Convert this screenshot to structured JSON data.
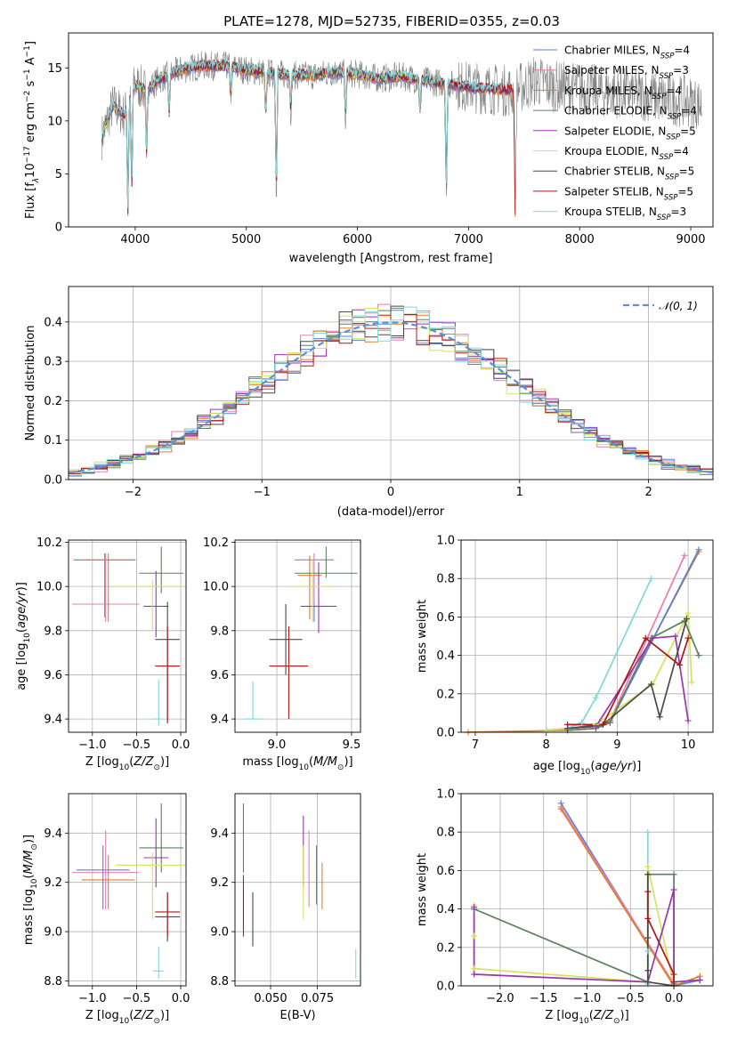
{
  "figure": {
    "title": "PLATE=1278, MJD=52735, FIBERID=0355, z=0.03"
  },
  "models": [
    {
      "name": "Chabrier MILES, N",
      "sub": "SSP",
      "eq": "=4",
      "color": "#5b7fd9"
    },
    {
      "name": "Salpeter MILES, N",
      "sub": "SSP",
      "eq": "=3",
      "color": "#e87bb2"
    },
    {
      "name": "Kroupa MILES, N",
      "sub": "SSP",
      "eq": "=4",
      "color": "#e0802a"
    },
    {
      "name": "Chabrier ELODIE, N",
      "sub": "SSP",
      "eq": "=4",
      "color": "#5a8060"
    },
    {
      "name": "Salpeter ELODIE, N",
      "sub": "SSP",
      "eq": "=5",
      "color": "#9a35b0"
    },
    {
      "name": "Kroupa ELODIE, N",
      "sub": "SSP",
      "eq": "=4",
      "color": "#d6e35a"
    },
    {
      "name": "Chabrier STELIB, N",
      "sub": "SSP",
      "eq": "=5",
      "color": "#4a4a4a"
    },
    {
      "name": "Salpeter STELIB, N",
      "sub": "SSP",
      "eq": "=5",
      "color": "#b01818"
    },
    {
      "name": "Kroupa STELIB, N",
      "sub": "SSP",
      "eq": "=3",
      "color": "#7ed8dc"
    }
  ],
  "chart_data": [
    {
      "type": "line",
      "id": "spectrum",
      "title": "PLATE=1278, MJD=52735, FIBERID=0355, z=0.03",
      "xlabel": "wavelength [Angstrom, rest frame]",
      "ylabel_main": "Flux [f",
      "ylabel_rest": "10",
      "ylabel_exp": "−17",
      "ylabel_units": " erg cm",
      "ylabel_exp2": "−2",
      "ylabel_units2": " s",
      "ylabel_exp3": "−1",
      "ylabel_units3": " A",
      "ylabel_exp4": "−1",
      "ylabel_end": "]",
      "xlim": [
        3400,
        9200
      ],
      "ylim": [
        0,
        18.3
      ],
      "xticks": [
        4000,
        5000,
        6000,
        7000,
        8000,
        9000
      ],
      "yticks": [
        0,
        5,
        10,
        15
      ],
      "continuum": {
        "x": [
          3700,
          3800,
          3900,
          4000,
          4100,
          4200,
          4400,
          4600,
          4800,
          5000,
          5200,
          5400,
          5600,
          5800,
          6000,
          6200,
          6400,
          6600,
          6800,
          7000,
          7200,
          7400,
          7600,
          7800,
          8000,
          8200,
          8400,
          8600,
          8800,
          9000,
          9100
        ],
        "y": [
          8.5,
          11.5,
          10.5,
          13.5,
          12.8,
          13.8,
          14.8,
          15.2,
          15.2,
          14.8,
          14.5,
          14.3,
          14.3,
          14.6,
          14.4,
          14.0,
          14.2,
          13.8,
          13.5,
          13.2,
          13.0,
          12.8,
          13.8,
          13.2,
          13.1,
          12.8,
          12.6,
          12.4,
          12.0,
          11.8,
          11.5
        ]
      },
      "absorption_features": [
        {
          "x": 3934,
          "depth": 10.5
        },
        {
          "x": 3969,
          "depth": 9.5
        },
        {
          "x": 4102,
          "depth": 6.0
        },
        {
          "x": 4305,
          "depth": 4.0
        },
        {
          "x": 4861,
          "depth": 3.0
        },
        {
          "x": 5175,
          "depth": 4.5
        },
        {
          "x": 5270,
          "depth": 12.0
        },
        {
          "x": 5400,
          "depth": 3.5
        },
        {
          "x": 5893,
          "depth": 4.5
        },
        {
          "x": 6563,
          "depth": 3.5
        },
        {
          "x": 6800,
          "depth": 11.5
        },
        {
          "x": 7420,
          "depth": 12.5
        }
      ],
      "legend": "upper right"
    },
    {
      "type": "line",
      "id": "residuals",
      "xlabel": "(data-model)/error",
      "ylabel": "Normed distribution",
      "xlim": [
        -2.5,
        2.5
      ],
      "ylim": [
        0,
        0.49
      ],
      "xticks": [
        -2,
        -1,
        0,
        1,
        2
      ],
      "yticks": [
        0.0,
        0.1,
        0.2,
        0.3,
        0.4
      ],
      "grid": true,
      "gaussian_label": "𝒩(0, 1)",
      "gaussian_color": "#5b8fd9",
      "bin_width": 0.1,
      "histogram_noise_seed": [
        0.02,
        -0.015,
        0.01,
        -0.02,
        0.018,
        -0.008,
        0.012,
        -0.01,
        0.015
      ]
    },
    {
      "type": "scatter",
      "id": "age-vs-Z",
      "xlabel": "Z [log",
      "xlabel_sub": "10",
      "xlabel_rest": "(Z/Z",
      "xlabel_sub2": "⊙",
      "xlabel_end": ")]",
      "ylabel": "age  [log",
      "ylabel_sub": "10",
      "ylabel_rest": "(age/yr)]",
      "xlim": [
        -1.27,
        0.06
      ],
      "ylim": [
        9.34,
        10.21
      ],
      "xticks": [
        -1.0,
        -0.5,
        0.0
      ],
      "yticks": [
        9.4,
        9.6,
        9.8,
        10.0,
        10.2
      ],
      "points": [
        {
          "x": -0.86,
          "y": 10.12,
          "xe": 0.35,
          "yel": 0.26,
          "yeh": 0.03,
          "c": 0
        },
        {
          "x": -0.85,
          "y": 9.92,
          "xe": 0.38,
          "yel": 0.08,
          "yeh": 0.23,
          "c": 1
        },
        {
          "x": -0.82,
          "y": 10.12,
          "xe": 0.3,
          "yel": 0.28,
          "yeh": 0.03,
          "c": 2
        },
        {
          "x": -0.22,
          "y": 10.06,
          "xe": 0.25,
          "yel": 0.09,
          "yeh": 0.12,
          "c": 3
        },
        {
          "x": -0.28,
          "y": 9.91,
          "xe": 0.14,
          "yel": 0.14,
          "yeh": 0.16,
          "c": 4
        },
        {
          "x": -0.32,
          "y": 10.0,
          "xe": 0.42,
          "yel": 0.2,
          "yeh": 0.03,
          "c": 5
        },
        {
          "x": -0.15,
          "y": 9.76,
          "xe": 0.14,
          "yel": 0.38,
          "yeh": 0.17,
          "c": 6
        },
        {
          "x": -0.15,
          "y": 9.64,
          "xe": 0.14,
          "yel": 0.25,
          "yeh": 0.18,
          "c": 7
        },
        {
          "x": -0.25,
          "y": 9.4,
          "xe": 0.06,
          "yel": 0.03,
          "yeh": 0.18,
          "c": 8
        }
      ]
    },
    {
      "type": "scatter",
      "id": "age-vs-mass",
      "xlabel": "mass [log",
      "xlabel_sub": "10",
      "xlabel_rest": "(M/M",
      "xlabel_sub2": "⊙",
      "xlabel_end": ")]",
      "xlim": [
        8.72,
        9.56
      ],
      "ylim": [
        9.34,
        10.21
      ],
      "xticks": [
        9.0,
        9.5
      ],
      "yticks": [
        9.4,
        9.6,
        9.8,
        10.0,
        10.2
      ],
      "points": [
        {
          "x": 9.25,
          "y": 10.12,
          "xe": 0.13,
          "yel": 0.28,
          "yeh": 0.03,
          "c": 0
        },
        {
          "x": 9.25,
          "y": 10.12,
          "xe": 0.12,
          "yel": 0.2,
          "yeh": 0.03,
          "c": 1
        },
        {
          "x": 9.22,
          "y": 10.05,
          "xe": 0.08,
          "yel": 0.2,
          "yeh": 0.09,
          "c": 2
        },
        {
          "x": 9.33,
          "y": 10.06,
          "xe": 0.21,
          "yel": 0.02,
          "yeh": 0.12,
          "c": 3
        },
        {
          "x": 9.28,
          "y": 9.91,
          "xe": 0.12,
          "yel": 0.12,
          "yeh": 0.2,
          "c": 4
        },
        {
          "x": 9.24,
          "y": 10.0,
          "xe": 0.12,
          "yel": 0.16,
          "yeh": 0.12,
          "c": 5
        },
        {
          "x": 9.06,
          "y": 9.76,
          "xe": 0.11,
          "yel": 0.16,
          "yeh": 0.16,
          "c": 6
        },
        {
          "x": 9.08,
          "y": 9.64,
          "xe": 0.13,
          "yel": 0.24,
          "yeh": 0.18,
          "c": 7
        },
        {
          "x": 8.84,
          "y": 9.4,
          "xe": 0.06,
          "yel": 0.0,
          "yeh": 0.17,
          "c": 8
        }
      ]
    },
    {
      "type": "line",
      "id": "mass-weight-vs-age",
      "xlabel": "age  [log",
      "xlabel_sub": "10",
      "xlabel_rest": "(age/yr)]",
      "ylabel": "mass weight",
      "xlim": [
        6.8,
        10.35
      ],
      "ylim": [
        0,
        1.0
      ],
      "xticks": [
        7,
        8,
        9,
        10
      ],
      "yticks": [
        0.0,
        0.2,
        0.4,
        0.6,
        0.8,
        1.0
      ],
      "grid": true,
      "series": [
        {
          "c": 8,
          "x": [
            8.0,
            8.3,
            8.5,
            8.7,
            9.48
          ],
          "y": [
            0.01,
            0.02,
            0.05,
            0.18,
            0.8
          ]
        },
        {
          "c": 1,
          "x": [
            8.0,
            8.3,
            8.7,
            8.9,
            9.95
          ],
          "y": [
            0.01,
            0.02,
            0.03,
            0.06,
            0.92
          ]
        },
        {
          "c": 2,
          "x": [
            6.9,
            8.3,
            8.7,
            8.9,
            10.15
          ],
          "y": [
            0.0,
            0.01,
            0.02,
            0.06,
            0.94
          ]
        },
        {
          "c": 0,
          "x": [
            8.0,
            8.3,
            8.7,
            8.9,
            10.15
          ],
          "y": [
            0.01,
            0.02,
            0.03,
            0.05,
            0.95
          ]
        },
        {
          "c": 5,
          "x": [
            8.0,
            8.3,
            8.7,
            9.5,
            10.0,
            10.05
          ],
          "y": [
            0.01,
            0.02,
            0.04,
            0.25,
            0.62,
            0.26
          ]
        },
        {
          "c": 3,
          "x": [
            8.3,
            8.7,
            8.9,
            9.48,
            9.95,
            10.15
          ],
          "y": [
            0.01,
            0.02,
            0.05,
            0.49,
            0.58,
            0.4
          ]
        },
        {
          "c": 4,
          "x": [
            8.3,
            8.7,
            9.5,
            9.82,
            10.0
          ],
          "y": [
            0.02,
            0.03,
            0.49,
            0.5,
            0.06
          ]
        },
        {
          "c": 6,
          "x": [
            8.3,
            8.8,
            9.48,
            9.6,
            9.98
          ],
          "y": [
            0.02,
            0.04,
            0.25,
            0.08,
            0.59
          ]
        },
        {
          "c": 7,
          "x": [
            8.3,
            8.8,
            9.4,
            9.88,
            10.0
          ],
          "y": [
            0.04,
            0.04,
            0.49,
            0.35,
            0.49
          ]
        }
      ]
    },
    {
      "type": "scatter",
      "id": "mass-vs-Z",
      "xlabel": "Z [log",
      "xlabel_sub": "10",
      "xlabel_rest": "(Z/Z",
      "xlabel_sub2": "⊙",
      "xlabel_end": ")]",
      "ylabel": "mass [log",
      "ylabel_sub": "10",
      "ylabel_rest": "(M/M",
      "ylabel_sub2": "⊙",
      "ylabel_end": ")]",
      "xlim": [
        -1.27,
        0.06
      ],
      "ylim": [
        8.78,
        9.56
      ],
      "xticks": [
        -1.0,
        -0.5,
        0.0
      ],
      "yticks": [
        8.8,
        9.0,
        9.2,
        9.4
      ],
      "points": [
        {
          "x": -0.88,
          "y": 9.25,
          "xe": 0.3,
          "yel": 0.16,
          "yeh": 0.1,
          "c": 0
        },
        {
          "x": -0.85,
          "y": 9.24,
          "xe": 0.38,
          "yel": 0.15,
          "yeh": 0.17,
          "c": 1
        },
        {
          "x": -0.82,
          "y": 9.21,
          "xe": 0.3,
          "yel": 0.12,
          "yeh": 0.1,
          "c": 2
        },
        {
          "x": -0.22,
          "y": 9.34,
          "xe": 0.25,
          "yel": 0.1,
          "yeh": 0.18,
          "c": 3
        },
        {
          "x": -0.28,
          "y": 9.3,
          "xe": 0.14,
          "yel": 0.12,
          "yeh": 0.16,
          "c": 4
        },
        {
          "x": -0.32,
          "y": 9.27,
          "xe": 0.42,
          "yel": 0.22,
          "yeh": 0.05,
          "c": 5
        },
        {
          "x": -0.15,
          "y": 9.06,
          "xe": 0.14,
          "yel": 0.1,
          "yeh": 0.1,
          "c": 6
        },
        {
          "x": -0.15,
          "y": 9.08,
          "xe": 0.14,
          "yel": 0.1,
          "yeh": 0.08,
          "c": 7
        },
        {
          "x": -0.25,
          "y": 8.84,
          "xe": 0.06,
          "yel": 0.03,
          "yeh": 0.1,
          "c": 8
        }
      ]
    },
    {
      "type": "scatter",
      "id": "mass-vs-ebv",
      "xlabel": "E(B-V)",
      "xlim": [
        0.031,
        0.098
      ],
      "ylim": [
        8.78,
        9.56
      ],
      "xticks": [
        0.05,
        0.075
      ],
      "xticklabels": [
        "0.050",
        "0.075"
      ],
      "yticks": [
        8.8,
        9.0,
        9.2,
        9.4
      ],
      "points": [
        {
          "x": 0.0745,
          "y": 9.25,
          "yel": 0.14,
          "yeh": 0.1,
          "c": 0
        },
        {
          "x": 0.0705,
          "y": 9.24,
          "yel": 0.14,
          "yeh": 0.17,
          "c": 1
        },
        {
          "x": 0.0775,
          "y": 9.21,
          "yel": 0.12,
          "yeh": 0.07,
          "c": 2
        },
        {
          "x": 0.0355,
          "y": 9.34,
          "yel": 0.1,
          "yeh": 0.18,
          "c": 3
        },
        {
          "x": 0.0675,
          "y": 9.3,
          "yel": 0.12,
          "yeh": 0.17,
          "c": 4
        },
        {
          "x": 0.0675,
          "y": 9.27,
          "yel": 0.22,
          "yeh": 0.08,
          "c": 5
        },
        {
          "x": 0.0405,
          "y": 9.06,
          "yel": 0.12,
          "yeh": 0.1,
          "c": 6
        },
        {
          "x": 0.0355,
          "y": 9.08,
          "yel": 0.1,
          "yeh": 0.15,
          "c": 7
        },
        {
          "x": 0.0955,
          "y": 8.84,
          "yel": 0.03,
          "yeh": 0.09,
          "c": 8
        }
      ]
    },
    {
      "type": "line",
      "id": "mass-weight-vs-Z",
      "xlabel": "Z [log",
      "xlabel_sub": "10",
      "xlabel_rest": "(Z/Z",
      "xlabel_sub2": "⊙",
      "xlabel_end": ")]",
      "ylabel": "mass weight",
      "xlim": [
        -2.45,
        0.45
      ],
      "ylim": [
        0,
        1.0
      ],
      "xticks": [
        -2.0,
        -1.5,
        -1.0,
        -0.5,
        0.0
      ],
      "yticks": [
        0.0,
        0.2,
        0.4,
        0.6,
        0.8,
        1.0
      ],
      "grid": true,
      "series": [
        {
          "c": 8,
          "x": [
            -0.3,
            -0.3,
            -0.3
          ],
          "y": [
            0.8,
            0.18,
            0.01
          ]
        },
        {
          "c": 0,
          "x": [
            -1.3,
            0.0,
            0.3
          ],
          "y": [
            0.95,
            0.0,
            0.03
          ]
        },
        {
          "c": 1,
          "x": [
            -1.3,
            0.0
          ],
          "y": [
            0.93,
            0.01
          ]
        },
        {
          "c": 2,
          "x": [
            -1.3,
            0.0,
            0.3
          ],
          "y": [
            0.92,
            0.0,
            0.05
          ]
        },
        {
          "c": 5,
          "x": [
            -2.3,
            -2.3,
            -2.3,
            -0.3,
            -0.3,
            0.0
          ],
          "y": [
            0.42,
            0.26,
            0.09,
            0.02,
            0.62,
            0.0
          ]
        },
        {
          "c": 3,
          "x": [
            -2.3,
            -0.3,
            -0.3,
            0.0,
            0.0
          ],
          "y": [
            0.4,
            0.02,
            0.58,
            0.58,
            0.01
          ]
        },
        {
          "c": 4,
          "x": [
            -2.3,
            -2.3,
            -0.3,
            0.0,
            0.0,
            0.3
          ],
          "y": [
            0.41,
            0.06,
            0.02,
            0.5,
            0.02,
            0.03
          ]
        },
        {
          "c": 6,
          "x": [
            -0.3,
            -0.3,
            -0.3,
            -0.3,
            0.0
          ],
          "y": [
            0.58,
            0.25,
            0.08,
            0.02,
            0.0
          ]
        },
        {
          "c": 7,
          "x": [
            -0.3,
            -0.3,
            0.0,
            0.0
          ],
          "y": [
            0.49,
            0.35,
            0.06,
            0.02
          ]
        }
      ]
    }
  ]
}
